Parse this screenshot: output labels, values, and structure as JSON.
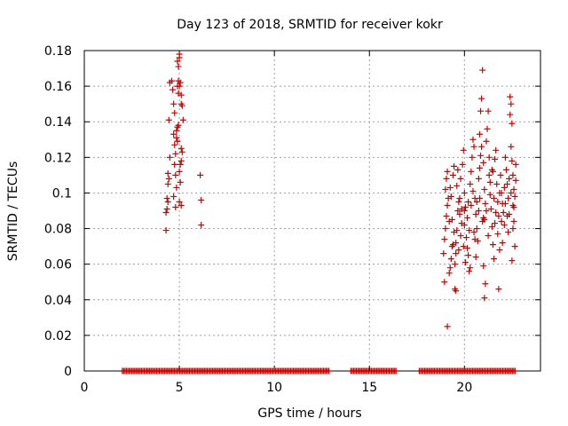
{
  "chart_data": {
    "type": "scatter",
    "title": "Day 123 of 2018, SRMTID for receiver kokr",
    "xlabel": "GPS time / hours",
    "ylabel": "SRMTID / TECUs",
    "xlim": [
      0,
      24
    ],
    "ylim": [
      0,
      0.18
    ],
    "xticks": [
      "0",
      "5",
      "10",
      "15",
      "20"
    ],
    "xtick_values": [
      0,
      5,
      10,
      15,
      20
    ],
    "yticks": [
      "0",
      "0.02",
      "0.04",
      "0.06",
      "0.08",
      "0.1",
      "0.12",
      "0.14",
      "0.16",
      "0.18"
    ],
    "ytick_values": [
      0,
      0.02,
      0.04,
      0.06,
      0.08,
      0.1,
      0.12,
      0.14,
      0.16,
      0.18
    ],
    "grid": true,
    "marker": "+",
    "color": "#cc0000",
    "series": [
      {
        "points": [
          [
            4.3,
            0.079
          ],
          [
            4.3,
            0.089
          ],
          [
            4.35,
            0.091
          ],
          [
            4.4,
            0.095
          ],
          [
            4.35,
            0.097
          ],
          [
            4.4,
            0.105
          ],
          [
            4.45,
            0.108
          ],
          [
            4.4,
            0.111
          ],
          [
            4.5,
            0.12
          ],
          [
            4.45,
            0.141
          ],
          [
            4.5,
            0.162
          ],
          [
            4.6,
            0.163
          ],
          [
            4.65,
            0.158
          ],
          [
            4.7,
            0.15
          ],
          [
            4.75,
            0.145
          ],
          [
            4.7,
            0.133
          ],
          [
            4.75,
            0.127
          ],
          [
            4.8,
            0.122
          ],
          [
            4.75,
            0.116
          ],
          [
            4.8,
            0.11
          ],
          [
            4.85,
            0.103
          ],
          [
            4.7,
            0.098
          ],
          [
            4.8,
            0.092
          ],
          [
            4.85,
            0.135
          ],
          [
            4.9,
            0.137
          ],
          [
            4.9,
            0.129
          ],
          [
            4.85,
            0.131
          ],
          [
            4.95,
            0.138
          ],
          [
            4.9,
            0.16
          ],
          [
            4.95,
            0.163
          ],
          [
            5.0,
            0.16
          ],
          [
            4.95,
            0.156
          ],
          [
            4.9,
            0.174
          ],
          [
            4.95,
            0.171
          ],
          [
            5.0,
            0.178
          ],
          [
            5.0,
            0.176
          ],
          [
            5.05,
            0.162
          ],
          [
            5.1,
            0.155
          ],
          [
            5.1,
            0.15
          ],
          [
            5.15,
            0.149
          ],
          [
            5.2,
            0.141
          ],
          [
            5.1,
            0.125
          ],
          [
            5.15,
            0.123
          ],
          [
            5.1,
            0.118
          ],
          [
            5.05,
            0.116
          ],
          [
            5.0,
            0.112
          ],
          [
            5.05,
            0.106
          ],
          [
            5.0,
            0.095
          ],
          [
            5.1,
            0.093
          ],
          [
            6.1,
            0.11
          ],
          [
            6.15,
            0.096
          ],
          [
            6.15,
            0.082
          ],
          [
            19.1,
            0.025
          ],
          [
            18.95,
            0.05
          ],
          [
            18.9,
            0.066
          ],
          [
            18.95,
            0.074
          ],
          [
            19.0,
            0.08
          ],
          [
            19.05,
            0.087
          ],
          [
            19.1,
            0.093
          ],
          [
            19.0,
            0.102
          ],
          [
            19.05,
            0.108
          ],
          [
            19.1,
            0.112
          ],
          [
            19.2,
            0.055
          ],
          [
            19.25,
            0.058
          ],
          [
            19.3,
            0.063
          ],
          [
            19.35,
            0.07
          ],
          [
            19.2,
            0.084
          ],
          [
            19.3,
            0.098
          ],
          [
            19.4,
            0.11
          ],
          [
            19.45,
            0.115
          ],
          [
            19.5,
            0.046
          ],
          [
            19.55,
            0.045
          ],
          [
            19.5,
            0.06
          ],
          [
            19.55,
            0.072
          ],
          [
            19.6,
            0.079
          ],
          [
            19.65,
            0.09
          ],
          [
            19.6,
            0.104
          ],
          [
            19.7,
            0.095
          ],
          [
            19.75,
            0.088
          ],
          [
            19.7,
            0.068
          ],
          [
            19.8,
            0.076
          ],
          [
            19.85,
            0.083
          ],
          [
            19.8,
            0.108
          ],
          [
            19.9,
            0.116
          ],
          [
            19.95,
            0.124
          ],
          [
            20.0,
            0.1
          ],
          [
            20.05,
            0.092
          ],
          [
            20.0,
            0.082
          ],
          [
            20.1,
            0.075
          ],
          [
            20.15,
            0.069
          ],
          [
            20.2,
            0.065
          ],
          [
            20.25,
            0.056
          ],
          [
            20.3,
            0.058
          ],
          [
            20.2,
            0.095
          ],
          [
            20.3,
            0.105
          ],
          [
            20.35,
            0.112
          ],
          [
            20.4,
            0.12
          ],
          [
            20.45,
            0.13
          ],
          [
            20.5,
            0.126
          ],
          [
            20.55,
            0.097
          ],
          [
            20.6,
            0.088
          ],
          [
            20.65,
            0.08
          ],
          [
            20.7,
            0.073
          ],
          [
            20.6,
            0.064
          ],
          [
            20.75,
            0.108
          ],
          [
            20.8,
            0.114
          ],
          [
            20.85,
            0.121
          ],
          [
            20.8,
            0.133
          ],
          [
            20.85,
            0.146
          ],
          [
            20.9,
            0.153
          ],
          [
            20.95,
            0.169
          ],
          [
            20.9,
            0.126
          ],
          [
            21.0,
            0.117
          ],
          [
            21.05,
            0.102
          ],
          [
            21.1,
            0.094
          ],
          [
            21.05,
            0.085
          ],
          [
            21.0,
            0.059
          ],
          [
            21.1,
            0.049
          ],
          [
            21.05,
            0.041
          ],
          [
            21.15,
            0.129
          ],
          [
            21.2,
            0.136
          ],
          [
            21.25,
            0.146
          ],
          [
            21.3,
            0.11
          ],
          [
            21.35,
            0.099
          ],
          [
            21.4,
            0.091
          ],
          [
            21.45,
            0.081
          ],
          [
            21.5,
            0.071
          ],
          [
            21.55,
            0.063
          ],
          [
            21.5,
            0.112
          ],
          [
            21.6,
            0.119
          ],
          [
            21.65,
            0.124
          ],
          [
            21.7,
            0.105
          ],
          [
            21.75,
            0.095
          ],
          [
            21.8,
            0.087
          ],
          [
            21.75,
            0.077
          ],
          [
            21.85,
            0.068
          ],
          [
            21.8,
            0.046
          ],
          [
            21.9,
            0.11
          ],
          [
            21.95,
            0.1
          ],
          [
            22.0,
            0.094
          ],
          [
            22.05,
            0.089
          ],
          [
            22.1,
            0.082
          ],
          [
            22.0,
            0.072
          ],
          [
            22.15,
            0.12
          ],
          [
            22.2,
            0.113
          ],
          [
            22.25,
            0.105
          ],
          [
            22.3,
            0.097
          ],
          [
            22.35,
            0.088
          ],
          [
            22.3,
            0.078
          ],
          [
            22.4,
            0.154
          ],
          [
            22.45,
            0.15
          ],
          [
            22.4,
            0.144
          ],
          [
            22.5,
            0.139
          ],
          [
            22.45,
            0.126
          ],
          [
            22.5,
            0.118
          ],
          [
            22.55,
            0.11
          ],
          [
            22.6,
            0.102
          ],
          [
            22.55,
            0.093
          ],
          [
            22.6,
            0.084
          ],
          [
            22.5,
            0.062
          ],
          [
            22.65,
            0.07
          ],
          [
            22.7,
            0.107
          ],
          [
            22.7,
            0.116
          ],
          [
            22.65,
            0.098
          ],
          [
            19.15,
            0.097
          ],
          [
            19.25,
            0.103
          ],
          [
            19.35,
            0.085
          ],
          [
            19.45,
            0.078
          ],
          [
            19.55,
            0.066
          ],
          [
            19.65,
            0.113
          ],
          [
            19.75,
            0.097
          ],
          [
            19.85,
            0.091
          ],
          [
            19.95,
            0.07
          ],
          [
            20.05,
            0.061
          ],
          [
            20.15,
            0.086
          ],
          [
            20.25,
            0.079
          ],
          [
            20.35,
            0.093
          ],
          [
            20.45,
            0.101
          ],
          [
            20.55,
            0.074
          ],
          [
            20.65,
            0.095
          ],
          [
            20.75,
            0.09
          ],
          [
            20.95,
            0.084
          ],
          [
            21.15,
            0.09
          ],
          [
            21.25,
            0.076
          ],
          [
            21.35,
            0.106
          ],
          [
            21.45,
            0.113
          ],
          [
            21.55,
            0.097
          ],
          [
            21.65,
            0.089
          ],
          [
            21.85,
            0.1
          ],
          [
            21.95,
            0.084
          ],
          [
            22.15,
            0.094
          ],
          [
            22.25,
            0.087
          ],
          [
            22.35,
            0.108
          ],
          [
            22.45,
            0.1
          ],
          [
            22.55,
            0.08
          ],
          [
            22.6,
            0.092
          ],
          [
            21.0,
            0.086
          ],
          [
            20.5,
            0.078
          ],
          [
            20.0,
            0.09
          ],
          [
            19.4,
            0.071
          ],
          [
            21.6,
            0.083
          ],
          [
            22.1,
            0.103
          ],
          [
            20.8,
            0.097
          ],
          [
            21.3,
            0.12
          ]
        ]
      }
    ],
    "zero_band": {
      "y": 0,
      "x_start": 2.0,
      "x_end": 22.7,
      "gaps": [
        [
          12.9,
          14.0
        ],
        [
          16.4,
          17.6
        ]
      ]
    }
  }
}
